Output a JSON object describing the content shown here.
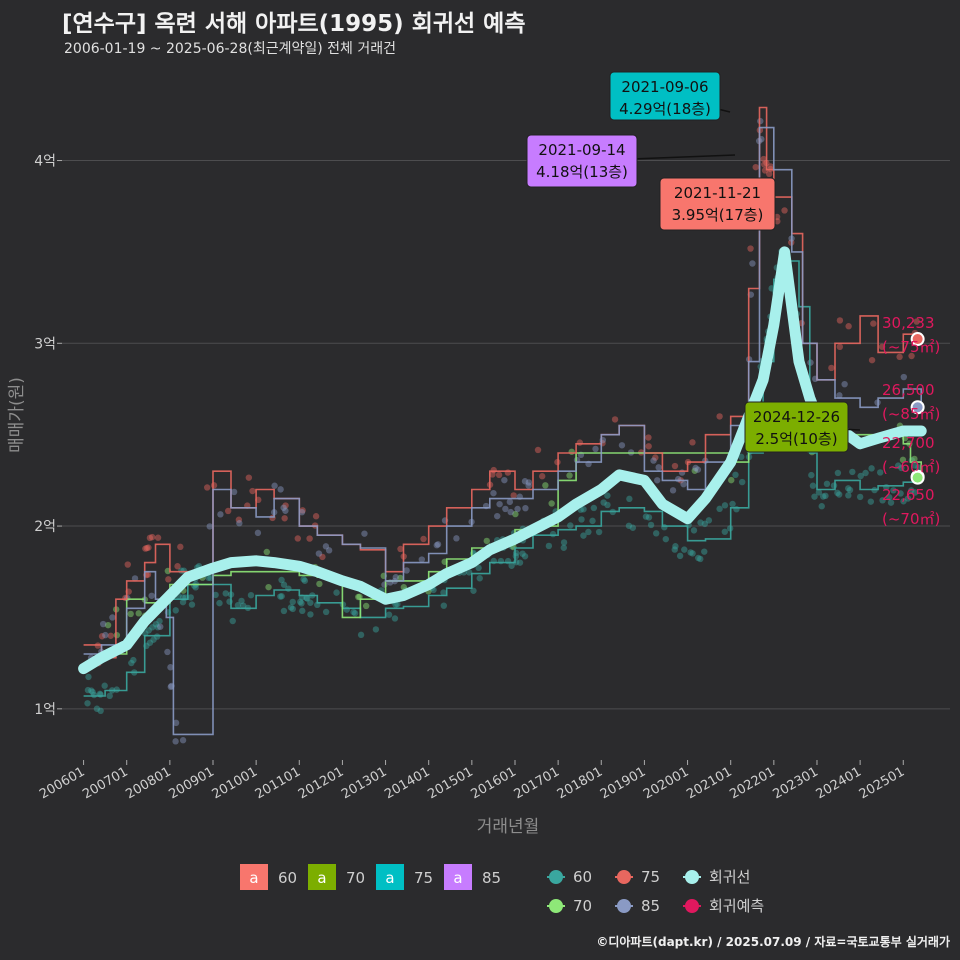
{
  "header": {
    "title": "[연수구] 옥련 서해 아파트(1995) 회귀선 예측",
    "subtitle": "2006-01-19 ~ 2025-06-28(최근계약일) 전체 거래건"
  },
  "caption": "©디아파트(dapt.kr) / 2025.07.09 / 자료=국토교통부 실거래가",
  "colors": {
    "background": "#2b2b2d",
    "grid": "#4d4d4f",
    "s60": "#3aa79f",
    "s70": "#8ee878",
    "s75": "#e8675f",
    "s85": "#8a9ac4",
    "regression": "#a8f0ec",
    "forecast": "#e0185e",
    "label60": "#f8766d",
    "label70": "#7cae00",
    "label75": "#00bfc4",
    "label85": "#c77cff"
  },
  "chart_data": {
    "type": "line",
    "title": "[연수구] 옥련 서해 아파트(1995) 회귀선 예측",
    "subtitle": "2006-01-19 ~ 2025-06-28(최근계약일) 전체 거래건",
    "xlabel": "거래년월",
    "ylabel": "매매가(원)",
    "xlim": [
      "2005-07",
      "2026-02"
    ],
    "ylim": [
      0.72,
      4.55
    ],
    "y_unit": "억",
    "grid": true,
    "legend_position": "bottom",
    "x_ticks": [
      "200601",
      "200701",
      "200801",
      "200901",
      "201001",
      "201101",
      "201201",
      "201301",
      "201401",
      "201501",
      "201601",
      "201701",
      "201801",
      "201901",
      "202001",
      "202101",
      "202201",
      "202301",
      "202401",
      "202501"
    ],
    "y_ticks": [
      {
        "value": 1,
        "label": "1억"
      },
      {
        "value": 2,
        "label": "2억"
      },
      {
        "value": 3,
        "label": "3억"
      },
      {
        "value": 4,
        "label": "4억"
      }
    ],
    "series": [
      {
        "name": "60",
        "color": "#3aa79f",
        "x": [
          "2006-01",
          "2006-07",
          "2007-01",
          "2007-06",
          "2008-01",
          "2008-06",
          "2009-01",
          "2009-06",
          "2010-01",
          "2010-06",
          "2011-01",
          "2011-06",
          "2012-01",
          "2012-06",
          "2013-01",
          "2013-06",
          "2014-01",
          "2014-06",
          "2015-01",
          "2015-06",
          "2016-01",
          "2016-06",
          "2017-01",
          "2017-06",
          "2018-01",
          "2018-06",
          "2019-01",
          "2019-06",
          "2020-01",
          "2020-06",
          "2021-01",
          "2021-06",
          "2021-10",
          "2022-01",
          "2022-04",
          "2022-08",
          "2022-11",
          "2023-01",
          "2023-06",
          "2024-01",
          "2024-06",
          "2025-01",
          "2025-06"
        ],
        "y": [
          1.07,
          1.1,
          1.2,
          1.4,
          1.6,
          1.68,
          1.68,
          1.55,
          1.62,
          1.65,
          1.62,
          1.58,
          1.55,
          1.5,
          1.55,
          1.56,
          1.62,
          1.66,
          1.74,
          1.8,
          1.88,
          1.95,
          1.98,
          2.0,
          2.08,
          2.1,
          2.08,
          2.0,
          1.92,
          1.93,
          2.1,
          2.4,
          2.9,
          3.35,
          3.45,
          3.2,
          2.4,
          2.2,
          2.25,
          2.2,
          2.22,
          2.24,
          2.27
        ]
      },
      {
        "name": "70",
        "color": "#8ee878",
        "x": [
          "2006-06",
          "2007-01",
          "2007-06",
          "2008-01",
          "2008-06",
          "2009-01",
          "2009-06",
          "2010-01",
          "2010-06",
          "2011-01",
          "2011-06",
          "2012-01",
          "2012-06",
          "2013-01",
          "2013-06",
          "2014-01",
          "2014-06",
          "2015-01",
          "2015-06",
          "2016-01",
          "2016-06",
          "2017-01",
          "2017-06",
          "2021-01",
          "2021-06",
          "2024-11",
          "2025-01",
          "2025-03",
          "2025-06"
        ],
        "y": [
          1.3,
          1.6,
          1.58,
          1.68,
          1.68,
          1.73,
          1.75,
          1.75,
          1.75,
          1.73,
          1.72,
          1.5,
          1.6,
          1.7,
          1.7,
          1.75,
          1.82,
          1.88,
          1.9,
          1.98,
          2.0,
          2.25,
          2.4,
          2.35,
          2.5,
          2.5,
          2.45,
          2.35,
          2.265
        ]
      },
      {
        "name": "75",
        "color": "#e8675f",
        "x": [
          "2006-01",
          "2006-06",
          "2006-10",
          "2007-01",
          "2007-06",
          "2007-09",
          "2008-01",
          "2009-01",
          "2009-06",
          "2010-01",
          "2010-06",
          "2011-01",
          "2011-06",
          "2012-01",
          "2012-06",
          "2013-01",
          "2013-06",
          "2014-01",
          "2014-06",
          "2015-01",
          "2015-06",
          "2016-01",
          "2016-06",
          "2017-01",
          "2017-06",
          "2018-01",
          "2018-06",
          "2019-01",
          "2019-06",
          "2020-01",
          "2020-06",
          "2021-01",
          "2021-06",
          "2021-09",
          "2021-11",
          "2022-01",
          "2022-06",
          "2022-09",
          "2023-01",
          "2023-06",
          "2024-01",
          "2024-06",
          "2025-01",
          "2025-06"
        ],
        "y": [
          1.35,
          1.28,
          1.6,
          1.7,
          1.8,
          1.9,
          1.75,
          2.3,
          2.1,
          2.2,
          2.15,
          2.0,
          1.95,
          1.9,
          1.87,
          1.75,
          1.9,
          2.0,
          2.1,
          2.2,
          2.3,
          2.2,
          2.3,
          2.4,
          2.45,
          2.5,
          2.55,
          2.4,
          2.3,
          2.35,
          2.5,
          2.6,
          3.3,
          4.29,
          3.95,
          3.8,
          3.6,
          3.0,
          2.8,
          3.0,
          3.15,
          2.95,
          3.05,
          3.02
        ]
      },
      {
        "name": "85",
        "color": "#8a9ac4",
        "x": [
          "2006-01",
          "2006-06",
          "2007-01",
          "2007-06",
          "2007-09",
          "2007-12",
          "2008-02",
          "2008-06",
          "2009-01",
          "2009-06",
          "2010-01",
          "2010-06",
          "2011-01",
          "2011-06",
          "2012-01",
          "2012-06",
          "2013-01",
          "2013-06",
          "2014-01",
          "2014-06",
          "2015-01",
          "2015-06",
          "2016-01",
          "2016-06",
          "2017-01",
          "2017-06",
          "2018-01",
          "2018-06",
          "2019-01",
          "2019-06",
          "2020-01",
          "2020-06",
          "2021-01",
          "2021-06",
          "2021-09",
          "2022-01",
          "2022-06",
          "2022-09",
          "2023-01",
          "2023-06",
          "2024-01",
          "2024-06",
          "2025-01",
          "2025-06"
        ],
        "y": [
          1.3,
          1.35,
          1.55,
          1.75,
          1.6,
          1.5,
          0.86,
          0.86,
          2.2,
          2.1,
          2.05,
          2.15,
          2.0,
          1.95,
          1.9,
          1.88,
          1.7,
          1.8,
          1.85,
          2.0,
          2.1,
          2.15,
          2.15,
          2.2,
          2.3,
          2.35,
          2.5,
          2.55,
          2.3,
          2.25,
          2.2,
          2.35,
          2.55,
          2.9,
          4.18,
          3.95,
          3.5,
          3.0,
          2.8,
          2.7,
          2.65,
          2.7,
          2.75,
          2.65
        ]
      },
      {
        "name": "회귀선",
        "color": "#a8f0ec",
        "x": [
          "2006-01",
          "2006-06",
          "2007-01",
          "2007-06",
          "2008-01",
          "2008-06",
          "2009-01",
          "2009-06",
          "2010-01",
          "2010-06",
          "2011-01",
          "2011-06",
          "2012-01",
          "2012-06",
          "2013-01",
          "2013-06",
          "2014-01",
          "2014-06",
          "2015-01",
          "2015-06",
          "2016-01",
          "2016-06",
          "2017-01",
          "2017-06",
          "2018-01",
          "2018-06",
          "2019-01",
          "2019-06",
          "2020-01",
          "2020-06",
          "2021-01",
          "2021-06",
          "2021-10",
          "2022-01",
          "2022-04",
          "2022-08",
          "2022-11",
          "2023-01",
          "2023-06",
          "2024-01",
          "2024-06",
          "2025-01",
          "2025-06"
        ],
        "y": [
          1.22,
          1.28,
          1.35,
          1.48,
          1.62,
          1.72,
          1.77,
          1.8,
          1.81,
          1.8,
          1.78,
          1.75,
          1.7,
          1.67,
          1.6,
          1.62,
          1.68,
          1.74,
          1.8,
          1.87,
          1.93,
          1.98,
          2.05,
          2.12,
          2.2,
          2.28,
          2.25,
          2.12,
          2.04,
          2.15,
          2.35,
          2.6,
          2.8,
          3.1,
          3.5,
          2.9,
          2.7,
          2.6,
          2.55,
          2.45,
          2.48,
          2.52,
          2.52
        ]
      }
    ],
    "forecast_points": [
      {
        "x": "2025-05",
        "y": 3.0233,
        "label": "30,233",
        "sub": "(~75㎡)",
        "color": "#e8675f"
      },
      {
        "x": "2025-05",
        "y": 2.65,
        "label": "26,500",
        "sub": "(~85㎡)",
        "color": "#8a9ac4"
      },
      {
        "x": "2025-05",
        "y": 2.27,
        "label": "22,700",
        "sub": "(~60㎡)",
        "color": "#3aa79f"
      },
      {
        "x": "2025-05",
        "y": 2.265,
        "label": "22,650",
        "sub": "(~70㎡)",
        "color": "#8ee878"
      }
    ],
    "annotations": [
      {
        "date": "2021-09-06",
        "price": "4.29억(18층)",
        "x": "2021-09",
        "y": 4.29,
        "fill": "#00bfc4"
      },
      {
        "date": "2021-09-14",
        "price": "4.18억(13층)",
        "x": "2021-09",
        "y": 4.18,
        "fill": "#c77cff"
      },
      {
        "date": "2021-11-21",
        "price": "3.95억(17층)",
        "x": "2021-11",
        "y": 3.95,
        "fill": "#f8766d"
      },
      {
        "date": "2024-12-26",
        "price": "2.5억(10층)",
        "x": "2024-12",
        "y": 2.5,
        "fill": "#7cae00"
      }
    ],
    "legend": {
      "labels": [
        {
          "key": "a",
          "name": "60",
          "color": "#f8766d"
        },
        {
          "key": "a",
          "name": "70",
          "color": "#7cae00"
        },
        {
          "key": "a",
          "name": "75",
          "color": "#00bfc4"
        },
        {
          "key": "a",
          "name": "85",
          "color": "#c77cff"
        }
      ],
      "lines_col1": [
        {
          "name": "60",
          "color": "#3aa79f"
        },
        {
          "name": "70",
          "color": "#8ee878"
        }
      ],
      "lines_col2": [
        {
          "name": "75",
          "color": "#e8675f"
        },
        {
          "name": "85",
          "color": "#8a9ac4"
        }
      ],
      "lines_col3": [
        {
          "name": "회귀선",
          "color": "#a8f0ec"
        },
        {
          "name": "회귀예측",
          "color": "#e0185e"
        }
      ]
    }
  }
}
